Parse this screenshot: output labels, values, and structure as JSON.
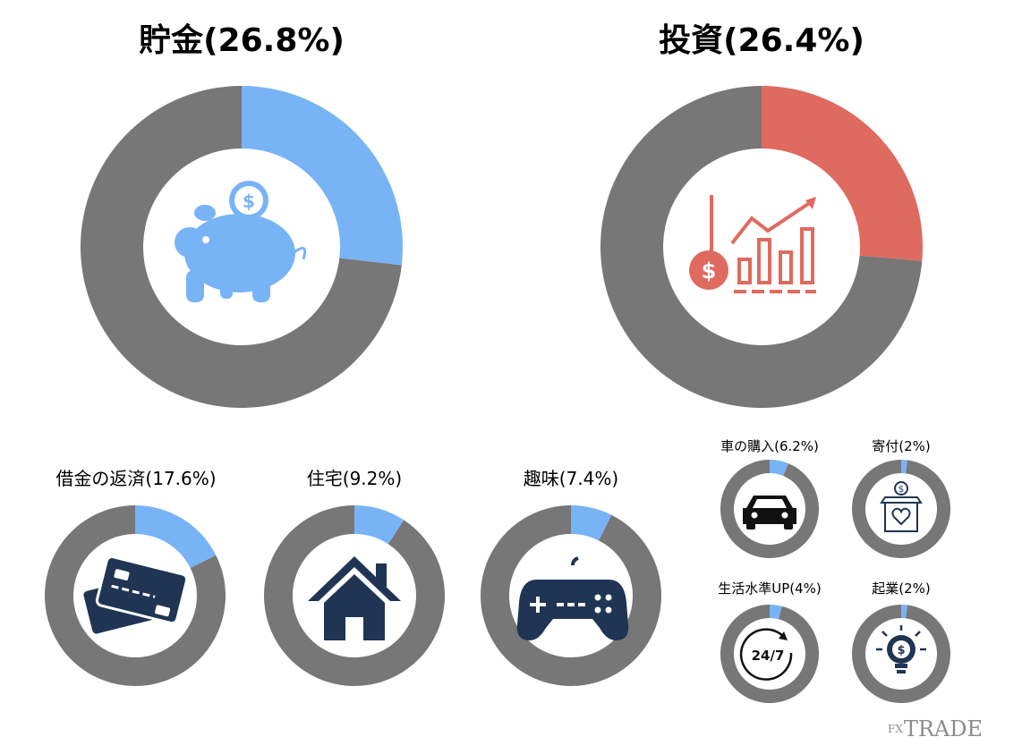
{
  "chart_data": [
    {
      "type": "pie",
      "title": "貯金(26.8%)",
      "value": 26.8,
      "color": "#78b3f5",
      "icon": "piggy-bank-icon"
    },
    {
      "type": "pie",
      "title": "投資(26.4%)",
      "value": 26.4,
      "color": "#df6a5f",
      "icon": "investment-chart-icon"
    },
    {
      "type": "pie",
      "title": "借金の返済(17.6%)",
      "value": 17.6,
      "color": "#78b3f5",
      "icon": "credit-card-icon"
    },
    {
      "type": "pie",
      "title": "住宅(9.2%)",
      "value": 9.2,
      "color": "#78b3f5",
      "icon": "house-icon"
    },
    {
      "type": "pie",
      "title": "趣味(7.4%)",
      "value": 7.4,
      "color": "#78b3f5",
      "icon": "game-controller-icon"
    },
    {
      "type": "pie",
      "title": "車の購入(6.2%)",
      "value": 6.2,
      "color": "#78b3f5",
      "icon": "car-icon"
    },
    {
      "type": "pie",
      "title": "寄付(2%)",
      "value": 2,
      "color": "#78b3f5",
      "icon": "donation-box-icon"
    },
    {
      "type": "pie",
      "title": "生活水準UP(4%)",
      "value": 4,
      "color": "#78b3f5",
      "icon": "clock-24-7-icon"
    },
    {
      "type": "pie",
      "title": "起業(2%)",
      "value": 2,
      "color": "#78b3f5",
      "icon": "idea-bulb-icon"
    }
  ],
  "colors": {
    "ring_gray": "#777777",
    "icon_navy": "#1f3553",
    "icon_blue": "#78b3f5",
    "icon_red": "#df6a5f"
  },
  "clock_text": "24/7",
  "logo": {
    "fx": "FX",
    "trade": "TRADE"
  }
}
